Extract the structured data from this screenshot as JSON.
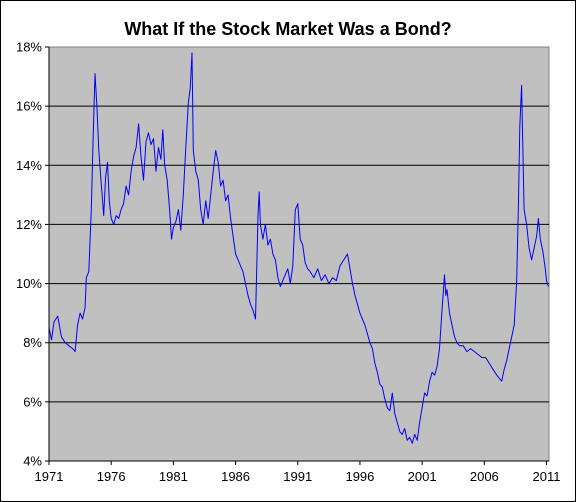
{
  "chart_data": {
    "type": "line",
    "title": "What If the Stock Market Was a Bond?",
    "xlabel": "",
    "ylabel": "",
    "xlim": [
      1971,
      2011.2
    ],
    "ylim": [
      4,
      18
    ],
    "x_ticks": [
      "1971",
      "1976",
      "1981",
      "1986",
      "1991",
      "1996",
      "2001",
      "2006",
      "2011"
    ],
    "y_ticks": [
      "4%",
      "6%",
      "8%",
      "10%",
      "12%",
      "14%",
      "16%",
      "18%"
    ],
    "grid": "horizontal",
    "legend": "none",
    "colors": {
      "line": "#0000ff",
      "plot_background": "#c0c0c0",
      "gridline": "#000000"
    },
    "series": [
      {
        "values": [
          [
            1971.0,
            8.5
          ],
          [
            1971.2,
            8.1
          ],
          [
            1971.4,
            8.7
          ],
          [
            1971.7,
            8.9
          ],
          [
            1972.0,
            8.2
          ],
          [
            1972.3,
            8.0
          ],
          [
            1972.6,
            7.9
          ],
          [
            1972.9,
            7.8
          ],
          [
            1973.1,
            7.7
          ],
          [
            1973.3,
            8.6
          ],
          [
            1973.5,
            9.0
          ],
          [
            1973.7,
            8.8
          ],
          [
            1973.9,
            9.2
          ],
          [
            1974.0,
            10.2
          ],
          [
            1974.2,
            10.4
          ],
          [
            1974.4,
            12.5
          ],
          [
            1974.55,
            15.0
          ],
          [
            1974.7,
            17.1
          ],
          [
            1974.85,
            16.0
          ],
          [
            1975.0,
            14.5
          ],
          [
            1975.2,
            13.4
          ],
          [
            1975.4,
            12.3
          ],
          [
            1975.55,
            13.6
          ],
          [
            1975.7,
            14.1
          ],
          [
            1975.85,
            12.8
          ],
          [
            1976.0,
            12.2
          ],
          [
            1976.2,
            12.0
          ],
          [
            1976.4,
            12.3
          ],
          [
            1976.6,
            12.2
          ],
          [
            1976.8,
            12.5
          ],
          [
            1977.0,
            12.7
          ],
          [
            1977.2,
            13.3
          ],
          [
            1977.4,
            13.0
          ],
          [
            1977.6,
            13.8
          ],
          [
            1977.8,
            14.3
          ],
          [
            1978.0,
            14.6
          ],
          [
            1978.2,
            15.4
          ],
          [
            1978.4,
            14.3
          ],
          [
            1978.6,
            13.5
          ],
          [
            1978.8,
            14.8
          ],
          [
            1979.0,
            15.1
          ],
          [
            1979.2,
            14.7
          ],
          [
            1979.4,
            14.9
          ],
          [
            1979.6,
            13.8
          ],
          [
            1979.8,
            14.6
          ],
          [
            1980.0,
            14.2
          ],
          [
            1980.15,
            15.2
          ],
          [
            1980.3,
            14.0
          ],
          [
            1980.5,
            13.5
          ],
          [
            1980.7,
            12.5
          ],
          [
            1980.85,
            11.5
          ],
          [
            1981.0,
            11.9
          ],
          [
            1981.2,
            12.1
          ],
          [
            1981.4,
            12.5
          ],
          [
            1981.6,
            11.8
          ],
          [
            1981.8,
            13.0
          ],
          [
            1982.0,
            14.6
          ],
          [
            1982.2,
            16.1
          ],
          [
            1982.35,
            16.6
          ],
          [
            1982.5,
            17.8
          ],
          [
            1982.6,
            14.5
          ],
          [
            1982.8,
            13.8
          ],
          [
            1983.0,
            13.5
          ],
          [
            1983.2,
            12.5
          ],
          [
            1983.4,
            12.0
          ],
          [
            1983.6,
            12.8
          ],
          [
            1983.8,
            12.2
          ],
          [
            1984.0,
            13.0
          ],
          [
            1984.2,
            13.8
          ],
          [
            1984.4,
            14.5
          ],
          [
            1984.6,
            14.1
          ],
          [
            1984.8,
            13.3
          ],
          [
            1985.0,
            13.5
          ],
          [
            1985.2,
            12.8
          ],
          [
            1985.4,
            13.0
          ],
          [
            1985.6,
            12.2
          ],
          [
            1985.8,
            11.6
          ],
          [
            1986.0,
            11.0
          ],
          [
            1986.2,
            10.8
          ],
          [
            1986.4,
            10.6
          ],
          [
            1986.6,
            10.4
          ],
          [
            1986.8,
            10.0
          ],
          [
            1987.0,
            9.6
          ],
          [
            1987.2,
            9.3
          ],
          [
            1987.4,
            9.1
          ],
          [
            1987.6,
            8.8
          ],
          [
            1987.8,
            12.3
          ],
          [
            1987.9,
            13.1
          ],
          [
            1988.0,
            12.0
          ],
          [
            1988.2,
            11.5
          ],
          [
            1988.4,
            12.0
          ],
          [
            1988.6,
            11.3
          ],
          [
            1988.8,
            11.5
          ],
          [
            1989.0,
            11.0
          ],
          [
            1989.2,
            10.8
          ],
          [
            1989.4,
            10.2
          ],
          [
            1989.6,
            9.9
          ],
          [
            1989.8,
            10.1
          ],
          [
            1990.0,
            10.3
          ],
          [
            1990.2,
            10.5
          ],
          [
            1990.4,
            10.0
          ],
          [
            1990.6,
            10.6
          ],
          [
            1990.8,
            12.5
          ],
          [
            1991.0,
            12.7
          ],
          [
            1991.2,
            11.5
          ],
          [
            1991.4,
            11.3
          ],
          [
            1991.6,
            10.7
          ],
          [
            1991.8,
            10.5
          ],
          [
            1992.0,
            10.4
          ],
          [
            1992.3,
            10.2
          ],
          [
            1992.6,
            10.5
          ],
          [
            1992.9,
            10.1
          ],
          [
            1993.2,
            10.3
          ],
          [
            1993.5,
            10.0
          ],
          [
            1993.8,
            10.2
          ],
          [
            1994.1,
            10.1
          ],
          [
            1994.4,
            10.6
          ],
          [
            1994.7,
            10.8
          ],
          [
            1995.0,
            11.0
          ],
          [
            1995.2,
            10.5
          ],
          [
            1995.4,
            10.0
          ],
          [
            1995.6,
            9.6
          ],
          [
            1995.8,
            9.3
          ],
          [
            1996.0,
            9.0
          ],
          [
            1996.2,
            8.8
          ],
          [
            1996.4,
            8.6
          ],
          [
            1996.6,
            8.3
          ],
          [
            1996.8,
            8.0
          ],
          [
            1997.0,
            7.8
          ],
          [
            1997.2,
            7.3
          ],
          [
            1997.4,
            7.0
          ],
          [
            1997.6,
            6.6
          ],
          [
            1997.8,
            6.5
          ],
          [
            1998.0,
            6.1
          ],
          [
            1998.2,
            5.8
          ],
          [
            1998.4,
            5.7
          ],
          [
            1998.6,
            6.3
          ],
          [
            1998.8,
            5.6
          ],
          [
            1999.0,
            5.3
          ],
          [
            1999.2,
            5.0
          ],
          [
            1999.4,
            4.9
          ],
          [
            1999.6,
            5.1
          ],
          [
            1999.8,
            4.7
          ],
          [
            2000.0,
            4.8
          ],
          [
            2000.2,
            4.6
          ],
          [
            2000.4,
            4.9
          ],
          [
            2000.6,
            4.7
          ],
          [
            2000.8,
            5.3
          ],
          [
            2001.0,
            5.8
          ],
          [
            2001.2,
            6.3
          ],
          [
            2001.4,
            6.2
          ],
          [
            2001.6,
            6.7
          ],
          [
            2001.8,
            7.0
          ],
          [
            2002.0,
            6.9
          ],
          [
            2002.2,
            7.2
          ],
          [
            2002.4,
            7.8
          ],
          [
            2002.6,
            9.1
          ],
          [
            2002.8,
            10.3
          ],
          [
            2002.9,
            9.6
          ],
          [
            2003.0,
            9.8
          ],
          [
            2003.2,
            9.0
          ],
          [
            2003.4,
            8.6
          ],
          [
            2003.6,
            8.2
          ],
          [
            2003.8,
            8.0
          ],
          [
            2004.0,
            7.9
          ],
          [
            2004.3,
            7.9
          ],
          [
            2004.6,
            7.7
          ],
          [
            2004.9,
            7.8
          ],
          [
            2005.2,
            7.7
          ],
          [
            2005.5,
            7.6
          ],
          [
            2005.8,
            7.5
          ],
          [
            2006.1,
            7.5
          ],
          [
            2006.4,
            7.3
          ],
          [
            2006.7,
            7.1
          ],
          [
            2007.0,
            6.9
          ],
          [
            2007.2,
            6.8
          ],
          [
            2007.4,
            6.7
          ],
          [
            2007.6,
            7.1
          ],
          [
            2007.8,
            7.4
          ],
          [
            2008.0,
            7.8
          ],
          [
            2008.2,
            8.2
          ],
          [
            2008.4,
            8.6
          ],
          [
            2008.6,
            10.1
          ],
          [
            2008.75,
            12.8
          ],
          [
            2008.85,
            15.3
          ],
          [
            2009.0,
            16.7
          ],
          [
            2009.1,
            14.5
          ],
          [
            2009.2,
            12.5
          ],
          [
            2009.4,
            12.0
          ],
          [
            2009.6,
            11.2
          ],
          [
            2009.8,
            10.8
          ],
          [
            2010.0,
            11.2
          ],
          [
            2010.2,
            11.6
          ],
          [
            2010.35,
            12.2
          ],
          [
            2010.5,
            11.5
          ],
          [
            2010.7,
            11.1
          ],
          [
            2010.9,
            10.5
          ],
          [
            2011.0,
            10.1
          ],
          [
            2011.15,
            9.9
          ]
        ]
      }
    ]
  }
}
